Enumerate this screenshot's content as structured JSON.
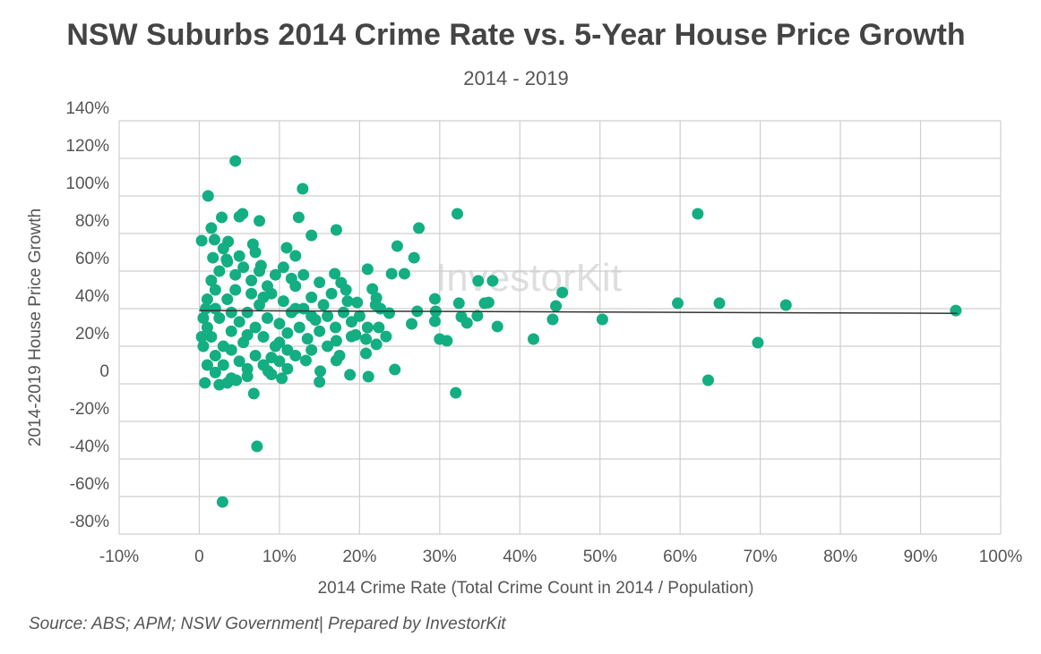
{
  "chart_data": {
    "type": "scatter",
    "title": "NSW Suburbs 2014 Crime Rate vs. 5-Year House Price Growth",
    "subtitle": "2014 - 2019",
    "x_label": "2014 Crime Rate (Total Crime Count in 2014 / Population)",
    "y_label": "2014-2019 House Price Growth",
    "source": "Source: ABS; APM; NSW Government| Prepared by InvestorKit",
    "watermark": "InvestorKit",
    "color": "#13ae82",
    "grid": true,
    "xlim": [
      -10,
      100
    ],
    "ylim": [
      -80,
      140
    ],
    "xticks": [
      {
        "value": -10,
        "label": "-10%"
      },
      0,
      {
        "value": 10,
        "label": "10%"
      },
      {
        "value": 20,
        "label": "20%"
      },
      {
        "value": 30,
        "label": "30%"
      },
      {
        "value": 40,
        "label": "40%"
      },
      {
        "value": 50,
        "label": "50%"
      },
      {
        "value": 60,
        "label": "60%"
      },
      {
        "value": 70,
        "label": "70%"
      },
      {
        "value": 80,
        "label": "80%"
      },
      {
        "value": 90,
        "label": "90%"
      },
      {
        "value": 100,
        "label": "100%"
      }
    ],
    "yticks": [
      {
        "value": -80,
        "label": "-80%"
      },
      {
        "value": -60,
        "label": "-60%"
      },
      {
        "value": -40,
        "label": "-40%"
      },
      {
        "value": -20,
        "label": "-20%"
      },
      0,
      {
        "value": 20,
        "label": "20%"
      },
      {
        "value": 40,
        "label": "40%"
      },
      {
        "value": 60,
        "label": "60%"
      },
      {
        "value": 80,
        "label": "80%"
      },
      {
        "value": 100,
        "label": "100%"
      },
      {
        "value": 120,
        "label": "120%"
      },
      {
        "value": 140,
        "label": "140%"
      }
    ],
    "x": [
      4.5,
      1.1,
      12.9,
      32.2,
      62.2,
      12.4,
      7.5,
      17.1,
      14.0,
      27.4,
      24.7,
      26.8,
      21.0,
      24.0,
      25.6,
      34.8,
      36.6,
      45.3,
      29.4,
      35.6,
      36.1,
      32.4,
      59.7,
      64.9,
      73.2,
      44.5,
      94.4,
      29.5,
      27.2,
      50.3,
      44.1,
      34.7,
      32.7,
      33.4,
      37.2,
      29.4,
      26.5,
      41.7,
      30.0,
      30.9,
      69.7,
      63.5,
      32.0,
      24.4,
      21.1,
      18.8,
      15.0,
      7.2,
      2.9,
      6.8,
      0.7,
      2.5,
      0.3,
      5.0,
      5.4,
      2.8,
      1.5,
      1.9,
      3.6,
      6.7,
      1.7,
      3.4,
      10.9,
      12.0,
      7.7,
      16.9,
      17.7,
      18.3,
      21.6,
      22.1,
      19.7,
      22.6,
      23.7,
      22.4,
      22.1,
      23.3,
      20.8,
      20.8,
      19.0,
      17.1,
      17.1,
      15.1,
      13.3,
      10.3,
      8.6,
      4.6,
      3.5,
      1,
      1.5,
      2,
      2.5,
      3,
      3.5,
      4,
      4.5,
      5,
      5.5,
      6,
      6.5,
      7,
      7.5,
      8,
      8.5,
      9,
      9.5,
      10,
      10.5,
      11,
      11.5,
      12,
      12.5,
      13,
      13.5,
      14,
      14.5,
      15,
      15.5,
      16,
      17,
      18,
      19,
      0.5,
      0.5,
      1,
      1.5,
      2,
      2.5,
      3,
      3.5,
      4,
      4.5,
      5,
      5.5,
      6,
      6.5,
      7,
      7.5,
      8,
      8.5,
      9,
      9.5,
      10,
      10.5,
      11,
      11.5,
      12,
      13,
      14,
      15,
      16,
      16.5,
      17.5,
      18.5,
      19.5,
      20,
      21,
      22,
      3,
      5,
      7,
      2,
      4,
      6,
      8,
      10,
      12,
      14,
      1,
      0.3,
      0.8,
      6,
      9,
      11,
      4,
      2
    ],
    "series": [
      {
        "values": [
          118.6,
          100,
          103.8,
          90.5,
          90.5,
          88.6,
          86.7,
          81.9,
          79,
          82.9,
          73.3,
          67.1,
          61,
          58.6,
          58.6,
          54.8,
          54.8,
          48.6,
          45.2,
          42.9,
          43.3,
          42.9,
          42.9,
          42.9,
          41.9,
          41.4,
          39,
          38.6,
          38.6,
          34.3,
          34.3,
          36.2,
          35.7,
          32.4,
          30.5,
          33.3,
          31.9,
          23.8,
          23.8,
          22.9,
          21.9,
          1.9,
          -4.8,
          7.6,
          3.8,
          4.8,
          1,
          -33.3,
          -62.9,
          -5.2,
          0.5,
          -0.5,
          76.2,
          89,
          90.5,
          88.6,
          82.9,
          76.7,
          75.7,
          74.3,
          67.1,
          66.2,
          72.4,
          68.1,
          62.9,
          58.6,
          53.8,
          50,
          50.5,
          45.7,
          43.3,
          40,
          37.6,
          30,
          21,
          25.2,
          23.8,
          16.2,
          25.2,
          22.9,
          12.4,
          6.7,
          12.4,
          2.9,
          6.7,
          1.9,
          0.5,
          30,
          25,
          40,
          35,
          20,
          45,
          28,
          50,
          33,
          22,
          38,
          55,
          30,
          42,
          25,
          35,
          48,
          20,
          32,
          44,
          27,
          38,
          52,
          30,
          40,
          24,
          46,
          34,
          28,
          42,
          36,
          30,
          38,
          33,
          20,
          35,
          45,
          55,
          15,
          60,
          10,
          65,
          18,
          58,
          12,
          62,
          8,
          48,
          15,
          60,
          10,
          52,
          14,
          58,
          12,
          62,
          18,
          56,
          15,
          58,
          18,
          54,
          20,
          48,
          15,
          44,
          26,
          36,
          30,
          42,
          72,
          68,
          70,
          50,
          38,
          26,
          46,
          22,
          40,
          36,
          10,
          25,
          40,
          4,
          5,
          8,
          3,
          6
        ]
      }
    ],
    "trendline": {
      "x": [
        0,
        94.6
      ],
      "y": [
        39,
        37.5
      ]
    }
  }
}
